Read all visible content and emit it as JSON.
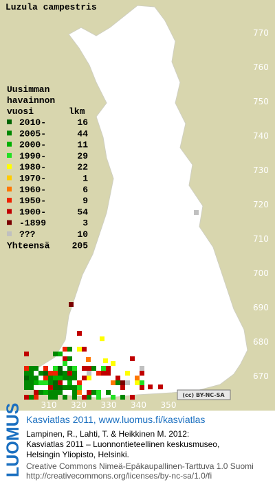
{
  "title": "Luzula campestris",
  "legend": {
    "heading": [
      "Uusimman",
      "havainnon",
      "vuosi"
    ],
    "count_heading": "lkm",
    "items": [
      {
        "label": "2010-",
        "count": 16,
        "color": "#006400"
      },
      {
        "label": "2005-",
        "count": 44,
        "color": "#008800"
      },
      {
        "label": "2000-",
        "count": 11,
        "color": "#00b000"
      },
      {
        "label": "1990-",
        "count": 29,
        "color": "#22e022"
      },
      {
        "label": "1980-",
        "count": 22,
        "color": "#ffff00"
      },
      {
        "label": "1970-",
        "count": 1,
        "color": "#ffcc00"
      },
      {
        "label": "1960-",
        "count": 6,
        "color": "#ff7700"
      },
      {
        "label": "1950-",
        "count": 9,
        "color": "#ee2200"
      },
      {
        "label": "1900-",
        "count": 54,
        "color": "#c00000"
      },
      {
        "label": "-1899",
        "count": 3,
        "color": "#7a0000"
      },
      {
        "label": "???",
        "count": 10,
        "color": "#c0c0c0"
      }
    ],
    "total_label": "Yhteensä",
    "total": 205
  },
  "grid": {
    "northing": [
      770,
      760,
      750,
      740,
      730,
      720,
      710,
      700,
      690,
      680,
      670
    ],
    "easting": [
      310,
      320,
      330,
      340,
      350
    ]
  },
  "license_badge": "(cc) BY-NC-SA",
  "footer": {
    "logo": "LUOMUS",
    "link": "Kasviatlas 2011, www.luomus.fi/kasviatlas",
    "citation": [
      "Lampinen, R., Lahti, T. & Heikkinen M. 2012:",
      "Kasviatlas 2011 – Luonnontieteellinen keskusmuseo,",
      "Helsingin Yliopisto, Helsinki."
    ],
    "license": [
      "Creative Commons Nimeä-Epäkaupallinen-Tarttuva 1.0 Suomi",
      "http://creativecommons.org/licenses/by-nc-sa/1.0/fi"
    ]
  }
}
